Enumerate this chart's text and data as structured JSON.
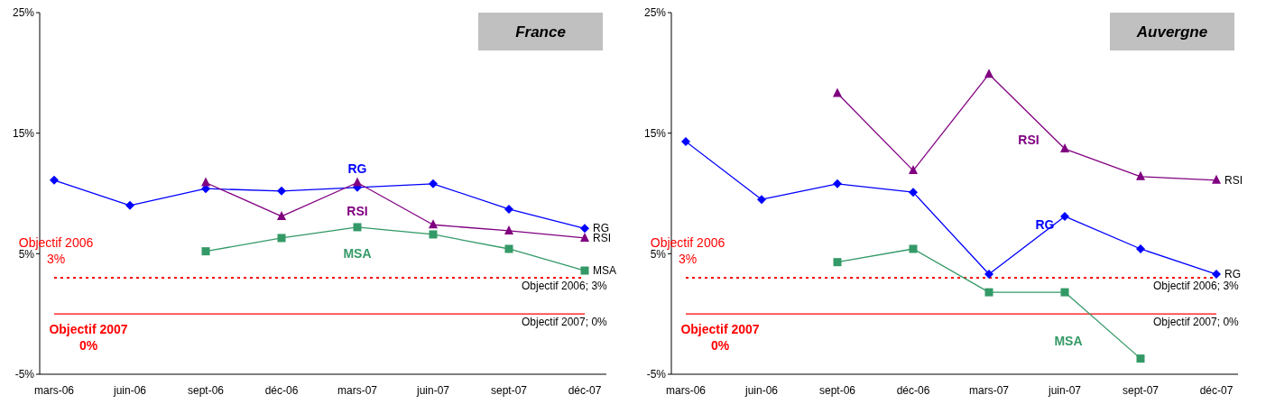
{
  "chart_data": [
    {
      "type": "line",
      "title": "France",
      "categories": [
        "mars-06",
        "juin-06",
        "sept-06",
        "déc-06",
        "mars-07",
        "juin-07",
        "sept-07",
        "déc-07"
      ],
      "ylim": [
        -5,
        25
      ],
      "yticks": [
        {
          "value": -5,
          "label": "-5%"
        },
        {
          "value": 5,
          "label": "5%"
        },
        {
          "value": 15,
          "label": "15%"
        },
        {
          "value": 25,
          "label": "25%"
        }
      ],
      "grid": false,
      "legend": false,
      "series": [
        {
          "name": "RG",
          "color": "#0000ff",
          "marker": "diamond",
          "values": [
            11.1,
            9.0,
            10.4,
            10.2,
            10.5,
            10.8,
            8.7,
            7.1
          ]
        },
        {
          "name": "RSI",
          "color": "#800080",
          "marker": "triangle",
          "values": [
            null,
            null,
            10.9,
            8.1,
            10.9,
            7.4,
            6.9,
            6.3
          ]
        },
        {
          "name": "MSA",
          "color": "#339966",
          "marker": "square",
          "values": [
            null,
            null,
            5.2,
            6.3,
            7.2,
            6.6,
            5.4,
            3.6
          ]
        }
      ],
      "ref_lines": [
        {
          "axis": "y",
          "value": 3,
          "label": "Objectif 2006; 3%",
          "color": "#ff0000",
          "line_style": "dotted"
        },
        {
          "axis": "y",
          "value": 0,
          "label": "Objectif 2007; 0%",
          "color": "#ff0000",
          "line_style": "solid"
        }
      ],
      "annotations": [
        "Objectif 2006\n3%",
        "Objectif 2007\n0%"
      ]
    },
    {
      "type": "line",
      "title": "Auvergne",
      "categories": [
        "mars-06",
        "juin-06",
        "sept-06",
        "déc-06",
        "mars-07",
        "juin-07",
        "sept-07",
        "déc-07"
      ],
      "ylim": [
        -5,
        25
      ],
      "yticks": [
        {
          "value": -5,
          "label": "-5%"
        },
        {
          "value": 5,
          "label": "5%"
        },
        {
          "value": 15,
          "label": "15%"
        },
        {
          "value": 25,
          "label": "25%"
        }
      ],
      "grid": false,
      "legend": false,
      "series": [
        {
          "name": "RG",
          "color": "#0000ff",
          "marker": "diamond",
          "values": [
            14.3,
            9.5,
            10.8,
            10.1,
            3.3,
            8.1,
            5.4,
            3.3
          ]
        },
        {
          "name": "RSI",
          "color": "#800080",
          "marker": "triangle",
          "values": [
            null,
            null,
            18.3,
            11.9,
            19.9,
            13.7,
            11.4,
            11.1
          ]
        },
        {
          "name": "MSA",
          "color": "#339966",
          "marker": "square",
          "values": [
            null,
            null,
            4.3,
            5.4,
            1.8,
            1.8,
            -3.7,
            null
          ]
        }
      ],
      "ref_lines": [
        {
          "axis": "y",
          "value": 3,
          "label": "Objectif 2006; 3%",
          "color": "#ff0000",
          "line_style": "dotted"
        },
        {
          "axis": "y",
          "value": 0,
          "label": "Objectif 2007; 0%",
          "color": "#ff0000",
          "line_style": "solid"
        }
      ],
      "annotations": [
        "Objectif 2006\n3%",
        "Objectif 2007\n0%"
      ]
    }
  ]
}
